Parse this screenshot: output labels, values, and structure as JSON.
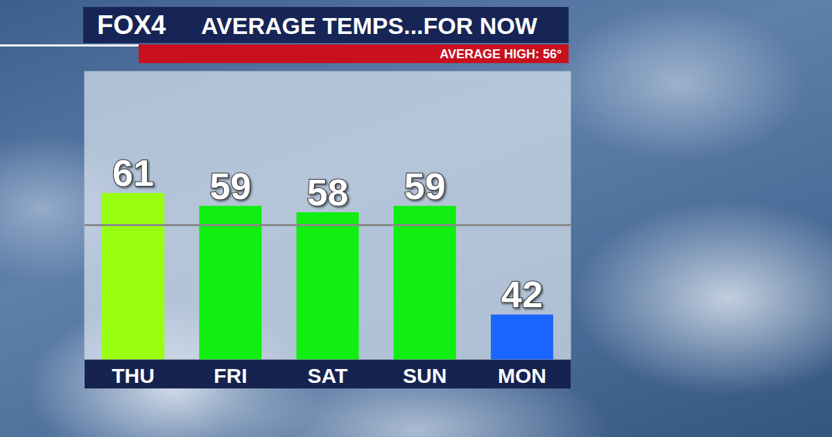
{
  "chart_data": {
    "type": "bar",
    "logo": "FOX4",
    "title": "AVERAGE TEMPS...FOR NOW",
    "subtitle": "AVERAGE HIGH: 56°",
    "categories": [
      "THU",
      "FRI",
      "SAT",
      "SUN",
      "MON"
    ],
    "values": [
      61,
      59,
      58,
      59,
      42
    ],
    "colors": [
      "#99ff11",
      "#11ee11",
      "#11ee11",
      "#11ee11",
      "#1a66ff"
    ],
    "average_high": 56,
    "ylim": [
      35,
      80
    ],
    "grid": false,
    "data_labels": true,
    "tick_labels": "x"
  }
}
